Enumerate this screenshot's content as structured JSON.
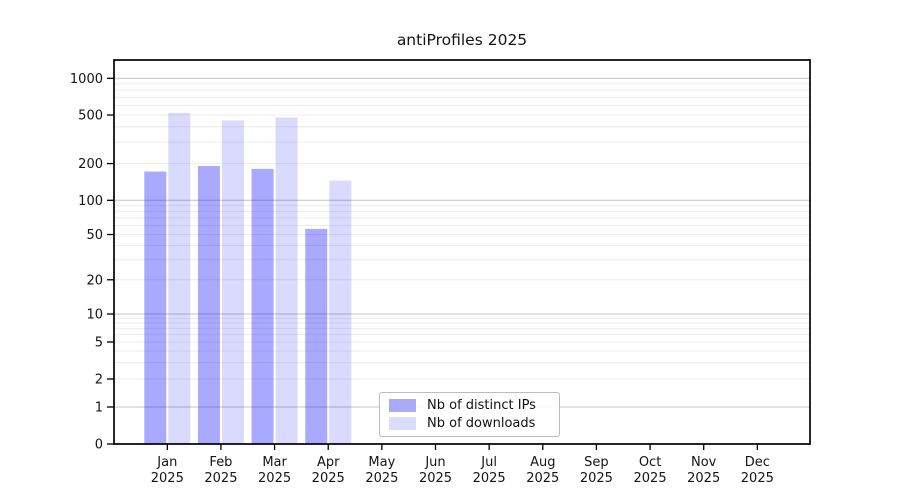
{
  "figure": {
    "background": "#ffffff",
    "axes_edge_color": "#000000",
    "major_grid_color": "#c3c3c3",
    "minor_grid_color": "#ececec",
    "text_color": "#141414"
  },
  "chart_data": {
    "type": "bar",
    "title": "antiProfiles 2025",
    "xlabel": "",
    "ylabel": "",
    "yscale": "symlog (linear 0-1, log 1-1000)",
    "ylim": [
      0,
      1400
    ],
    "yticks": [
      0,
      1,
      2,
      5,
      10,
      20,
      50,
      100,
      200,
      500,
      1000
    ],
    "grid": "horizontal major and minor log gridlines",
    "legend_position": "lower center inside axes",
    "categories": [
      "Jan",
      "Feb",
      "Mar",
      "Apr",
      "May",
      "Jun",
      "Jul",
      "Aug",
      "Sep",
      "Oct",
      "Nov",
      "Dec"
    ],
    "x_tick_second_line": "2025",
    "series": [
      {
        "name": "Nb of distinct IPs",
        "base_color": "#0a0aff",
        "opacity": 0.35,
        "swatch_color": "#aaaaf9",
        "values": [
          172,
          191,
          181,
          56,
          null,
          null,
          null,
          null,
          null,
          null,
          null,
          null
        ]
      },
      {
        "name": "Nb of downloads",
        "base_color": "#0a0aff",
        "opacity": 0.15,
        "swatch_color": "#dcdcfc",
        "values": [
          520,
          452,
          478,
          145,
          null,
          null,
          null,
          null,
          null,
          null,
          null,
          null
        ]
      }
    ]
  }
}
